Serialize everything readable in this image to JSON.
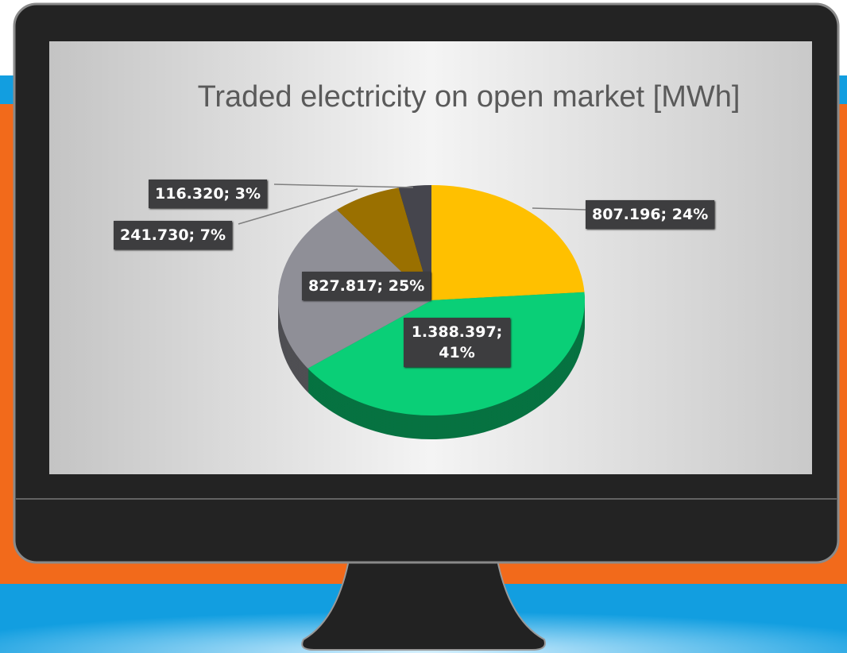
{
  "chart_data": {
    "type": "pie",
    "title": "Traded electricity on open market [MWh]",
    "values": [
      807196,
      1388397,
      827817,
      241730,
      116320
    ],
    "value_labels": [
      "807.196; 24%",
      "1.388.397; 41%",
      "827.817; 25%",
      "241.730; 7%",
      "116.320; 3%"
    ],
    "colors": [
      "#ffc000",
      "#0acf77",
      "#8f8f97",
      "#9a7000",
      "#45454d"
    ],
    "start_angle": 90,
    "direction": "clockwise"
  }
}
